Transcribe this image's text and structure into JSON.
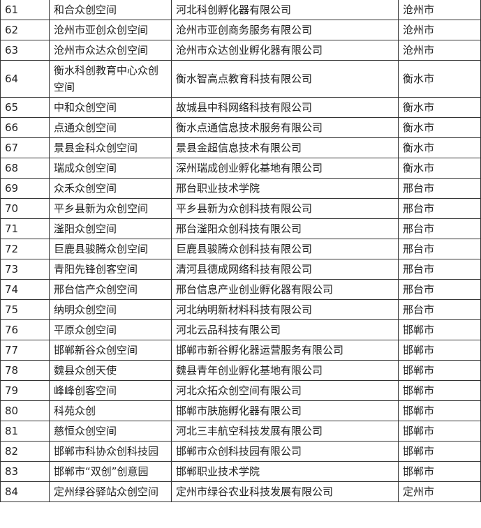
{
  "table": {
    "rows": [
      [
        61,
        "和合众创空间",
        "河北科创孵化器有限公司",
        "沧州市"
      ],
      [
        62,
        "沧州市亚创众创空间",
        "沧州市亚创商务服务有限公司",
        "沧州市"
      ],
      [
        63,
        "沧州市众达众创空间",
        "沧州市众达创业孵化器有限公司",
        "沧州市"
      ],
      [
        64,
        "衡水科创教育中心众创空间",
        "衡水智高点教育科技有限公司",
        "衡水市"
      ],
      [
        65,
        "中和众创空间",
        "故城县中科网络科技有限公司",
        "衡水市"
      ],
      [
        66,
        "点通众创空间",
        "衡水点通信息技术服务有限公司",
        "衡水市"
      ],
      [
        67,
        "景县金科众创空间",
        "景县金超信息技术有限公司",
        "衡水市"
      ],
      [
        68,
        "瑞成众创空间",
        "深州瑞成创业孵化基地有限公司",
        "衡水市"
      ],
      [
        69,
        "众禾众创空间",
        "邢台职业技术学院",
        "邢台市"
      ],
      [
        70,
        "平乡县新为众创空间",
        "平乡县新为众创科技有限公司",
        "邢台市"
      ],
      [
        71,
        "滏阳众创空间",
        "邢台滏阳众创科技有限公司",
        "邢台市"
      ],
      [
        72,
        "巨鹿县骏腾众创空间",
        "巨鹿县骏腾众创科技有限公司",
        "邢台市"
      ],
      [
        73,
        "青阳先锋创客空间",
        "清河县德成网络科技有限公司",
        "邢台市"
      ],
      [
        74,
        "邢台信产众创空间",
        "邢台信息产业创业孵化器有限公司",
        "邢台市"
      ],
      [
        75,
        "纳明众创空间",
        "河北纳明新材料科技有限公司",
        "邢台市"
      ],
      [
        76,
        "平原众创空间",
        "河北云品科技有限公司",
        "邯郸市"
      ],
      [
        77,
        "邯郸新谷众创空间",
        "邯郸市新谷孵化器运营服务有限公司",
        "邯郸市"
      ],
      [
        78,
        "魏县众创天使",
        "魏县青年创业孵化基地有限公司",
        "邯郸市"
      ],
      [
        79,
        "峰峰创客空间",
        "河北众拓众创空间有限公司",
        "邯郸市"
      ],
      [
        80,
        "科苑众创",
        "邯郸市肤施孵化器有限公司",
        "邯郸市"
      ],
      [
        81,
        "慈恒众创空间",
        "河北三丰航空科技发展有限公司",
        "邯郸市"
      ],
      [
        82,
        "邯郸市科协众创科技园",
        "邯郸市众创科技园有限公司",
        "邯郸市"
      ],
      [
        83,
        "邯郸市“双创”创意园",
        "邯郸职业技术学院",
        "邯郸市"
      ],
      [
        84,
        "定州绿谷驿站众创空间",
        "定州市绿谷农业科技发展有限公司",
        "定州市"
      ]
    ]
  }
}
